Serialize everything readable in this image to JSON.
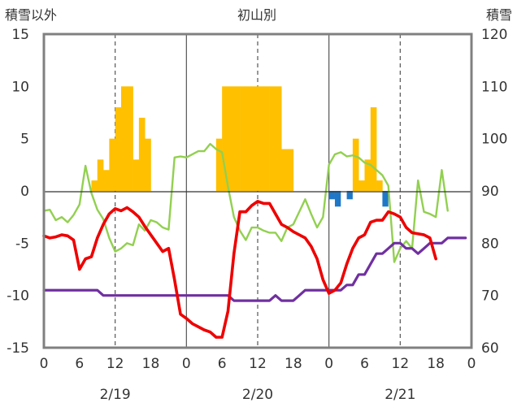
{
  "chart_data": {
    "type": "bar+line",
    "title": "初山別",
    "ylabel_left": "積雪以外",
    "ylabel_right": "積雪",
    "ylim_left": [
      -15,
      15
    ],
    "ylim_right": [
      60,
      120
    ],
    "yticks_left": [
      "15",
      "10",
      "5",
      "0",
      "-5",
      "-10",
      "-15"
    ],
    "yticks_right": [
      "120",
      "110",
      "100",
      "90",
      "80",
      "70",
      "60"
    ],
    "xticks": [
      "0",
      "6",
      "12",
      "18",
      "0",
      "6",
      "12",
      "18",
      "0",
      "6",
      "12",
      "18",
      "0"
    ],
    "dates": [
      "2/19",
      "2/20",
      "2/21"
    ],
    "grid": "dashed vertical at 12h, solid at day boundaries",
    "colors": {
      "precip": "#FFC000",
      "negative": "#1F77C8",
      "red_series": "#EE0000",
      "green_series": "#92D050",
      "purple_series": "#7030A0"
    },
    "precip_bars": {
      "hours": [
        8,
        9,
        10,
        11,
        12,
        13,
        14,
        15,
        16,
        17,
        29,
        30,
        31,
        32,
        33,
        34,
        35,
        36,
        37,
        38,
        39,
        40,
        41,
        52,
        53,
        54,
        55,
        56
      ],
      "values": [
        1,
        3,
        2,
        5,
        8,
        10,
        10,
        3,
        7,
        5,
        5,
        10,
        10,
        10,
        10,
        10,
        10,
        10,
        10,
        10,
        10,
        4,
        4,
        5,
        1,
        3,
        8,
        1
      ]
    },
    "negative_bars": {
      "hours": [
        48,
        49,
        51,
        57
      ],
      "values": [
        -0.8,
        -1.5,
        -0.8,
        -1.5
      ]
    },
    "red_series": [
      -4.3,
      -4.5,
      -4.4,
      -4.2,
      -4.3,
      -4.7,
      -7.5,
      -6.5,
      -6.3,
      -4.5,
      -3.2,
      -2.2,
      -1.7,
      -1.9,
      -1.6,
      -2.0,
      -2.5,
      -3.4,
      -4.2,
      -5.0,
      -5.8,
      -5.5,
      -8.5,
      -11.8,
      -12.2,
      -12.7,
      -13.0,
      -13.3,
      -13.5,
      -14.0,
      -14.0,
      -11.5,
      -6.0,
      -2.0,
      -2.0,
      -1.4,
      -1.0,
      -1.2,
      -1.2,
      -2.2,
      -3.2,
      -3.5,
      -3.9,
      -4.2,
      -4.5,
      -5.3,
      -6.5,
      -8.5,
      -9.8,
      -9.5,
      -8.8,
      -7.0,
      -5.5,
      -4.5,
      -4.2,
      -3.0,
      -2.8,
      -2.8,
      -2.0,
      -2.2,
      -2.5,
      -3.5,
      -4.0,
      -4.1,
      -4.2,
      -4.5,
      -6.5
    ],
    "green_series": [
      -1.9,
      -1.8,
      -2.8,
      -2.5,
      -3.0,
      -2.3,
      -1.3,
      2.4,
      -0.2,
      -1.8,
      -2.7,
      -4.5,
      -5.8,
      -5.5,
      -5.0,
      -5.2,
      -3.2,
      -3.8,
      -2.8,
      -3.0,
      -3.5,
      -3.7,
      3.2,
      3.3,
      3.2,
      3.5,
      3.8,
      3.8,
      4.5,
      4.0,
      3.7,
      0.4,
      -2.5,
      -3.8,
      -4.7,
      -3.5,
      -3.5,
      -3.8,
      -4.0,
      -4.0,
      -4.8,
      -3.5,
      -3.2,
      -2.0,
      -0.8,
      -2.2,
      -3.5,
      -2.5,
      2.5,
      3.5,
      3.7,
      3.3,
      3.4,
      3.2,
      2.7,
      2.5,
      2.0,
      1.5,
      0.5,
      -6.8,
      -5.5,
      -4.8,
      -5.5,
      1.0,
      -2.0,
      -2.2,
      -2.5,
      2.0,
      -1.9
    ],
    "purple_series": [
      -9.5,
      -9.5,
      -9.5,
      -9.5,
      -9.5,
      -9.5,
      -9.5,
      -9.5,
      -9.5,
      -9.5,
      -10.0,
      -10.0,
      -10.0,
      -10.0,
      -10.0,
      -10.0,
      -10.0,
      -10.0,
      -10.0,
      -10.0,
      -10.0,
      -10.0,
      -10.0,
      -10.0,
      -10.0,
      -10.0,
      -10.0,
      -10.0,
      -10.0,
      -10.0,
      -10.0,
      -10.0,
      -10.5,
      -10.5,
      -10.5,
      -10.5,
      -10.5,
      -10.5,
      -10.5,
      -10.0,
      -10.5,
      -10.5,
      -10.5,
      -10.0,
      -9.5,
      -9.5,
      -9.5,
      -9.5,
      -9.5,
      -9.5,
      -9.5,
      -9.0,
      -9.0,
      -8.0,
      -8.0,
      -7.0,
      -6.0,
      -6.0,
      -5.5,
      -5.0,
      -5.0,
      -5.5,
      -5.5,
      -6.0,
      -5.5,
      -5.0,
      -5.0,
      -5.0,
      -4.5,
      -4.5,
      -4.5,
      -4.5
    ]
  }
}
